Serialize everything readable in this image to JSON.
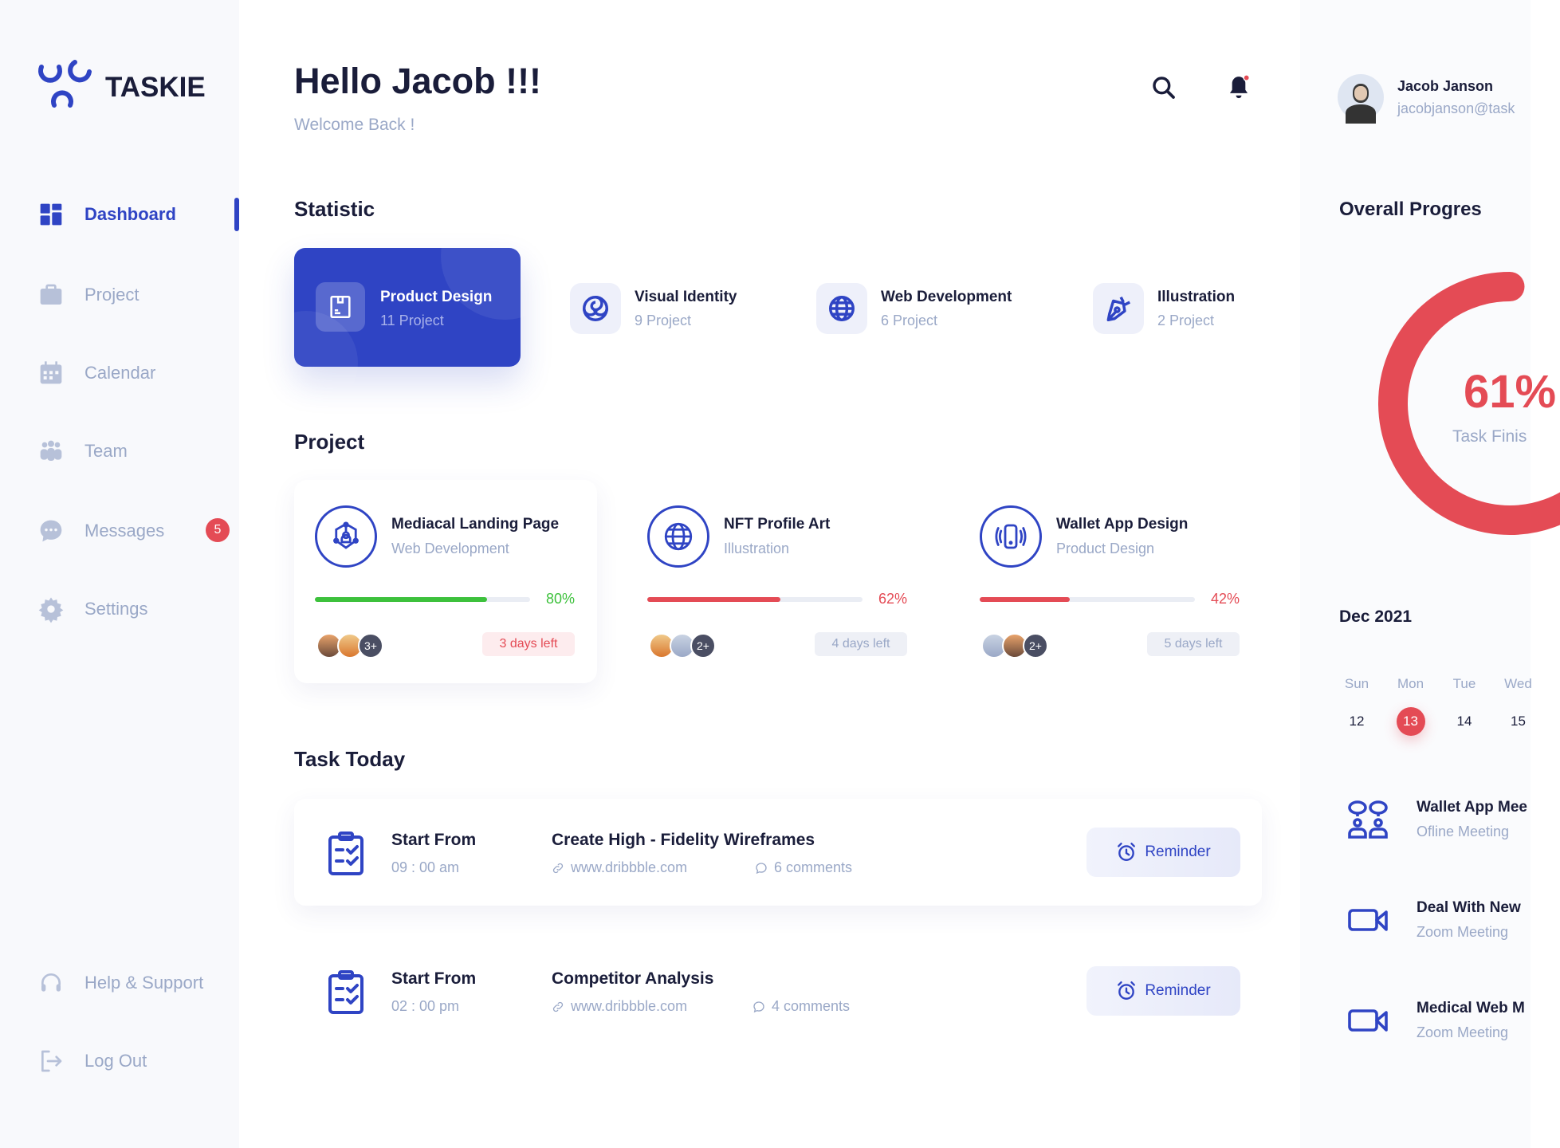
{
  "app": {
    "name": "TASKIE",
    "brand_color": "#2f44c4",
    "danger_color": "#e44b55",
    "success_color": "#3dc13c"
  },
  "sidebar": {
    "items": [
      {
        "label": "Dashboard",
        "icon": "grid-icon",
        "active": true
      },
      {
        "label": "Project",
        "icon": "briefcase-icon"
      },
      {
        "label": "Calendar",
        "icon": "calendar-icon"
      },
      {
        "label": "Team",
        "icon": "team-icon"
      },
      {
        "label": "Messages",
        "icon": "chat-icon",
        "badge": "5"
      },
      {
        "label": "Settings",
        "icon": "gear-icon"
      }
    ],
    "bottom": [
      {
        "label": "Help & Support",
        "icon": "headset-icon"
      },
      {
        "label": "Log Out",
        "icon": "logout-icon"
      }
    ]
  },
  "header": {
    "title": "Hello Jacob !!!",
    "subtitle": "Welcome Back !",
    "notification_dot": true
  },
  "user": {
    "name": "Jacob Janson",
    "email": "jacobjanson@task"
  },
  "statistic": {
    "title": "Statistic",
    "items": [
      {
        "title": "Product Design",
        "sub": "11 Project",
        "icon": "box-icon",
        "active": true
      },
      {
        "title": "Visual Identity",
        "sub": "9 Project",
        "icon": "swirl-icon"
      },
      {
        "title": "Web Development",
        "sub": "6 Project",
        "icon": "globe-icon"
      },
      {
        "title": "Illustration",
        "sub": "2 Project",
        "icon": "pen-tool-icon"
      }
    ]
  },
  "projects": {
    "title": "Project",
    "items": [
      {
        "title": "Mediacal Landing Page",
        "category": "Web Development",
        "progress": 80,
        "progress_label": "80%",
        "color": "#3dc13c",
        "more": "3+",
        "days": "3 days left",
        "urgent": true,
        "icon": "network-icon"
      },
      {
        "title": "NFT Profile Art",
        "category": "Illustration",
        "progress": 62,
        "progress_label": "62%",
        "color": "#e44b55",
        "more": "2+",
        "days": "4 days left",
        "icon": "globe-icon"
      },
      {
        "title": "Wallet App Design",
        "category": "Product Design",
        "progress": 42,
        "progress_label": "42%",
        "color": "#e44b55",
        "more": "2+",
        "days": "5 days left",
        "icon": "phone-vibrate-icon"
      }
    ]
  },
  "tasks": {
    "title": "Task Today",
    "items": [
      {
        "label": "Start From",
        "time": "09 : 00 am",
        "name": "Create High - Fidelity Wireframes",
        "link": "www.dribbble.com",
        "comments": "6 comments",
        "button": "Reminder"
      },
      {
        "label": "Start From",
        "time": "02 : 00 pm",
        "name": "Competitor Analysis",
        "link": "www.dribbble.com",
        "comments": "4 comments",
        "button": "Reminder"
      }
    ]
  },
  "overall": {
    "title": "Overall Progres",
    "value": 61,
    "value_label": "61%",
    "label": "Task Finis"
  },
  "calendar": {
    "month": "Dec 2021",
    "days": [
      {
        "wd": "Sun",
        "d": "12"
      },
      {
        "wd": "Mon",
        "d": "13",
        "selected": true
      },
      {
        "wd": "Tue",
        "d": "14"
      },
      {
        "wd": "Wed",
        "d": "15"
      }
    ]
  },
  "meetings": [
    {
      "title": "Wallet App Mee",
      "sub": "Ofline Meeting",
      "icon": "people-chat-icon"
    },
    {
      "title": "Deal With New",
      "sub": "Zoom Meeting",
      "icon": "video-camera-icon"
    },
    {
      "title": "Medical Web M",
      "sub": "Zoom Meeting",
      "icon": "video-camera-icon"
    }
  ]
}
